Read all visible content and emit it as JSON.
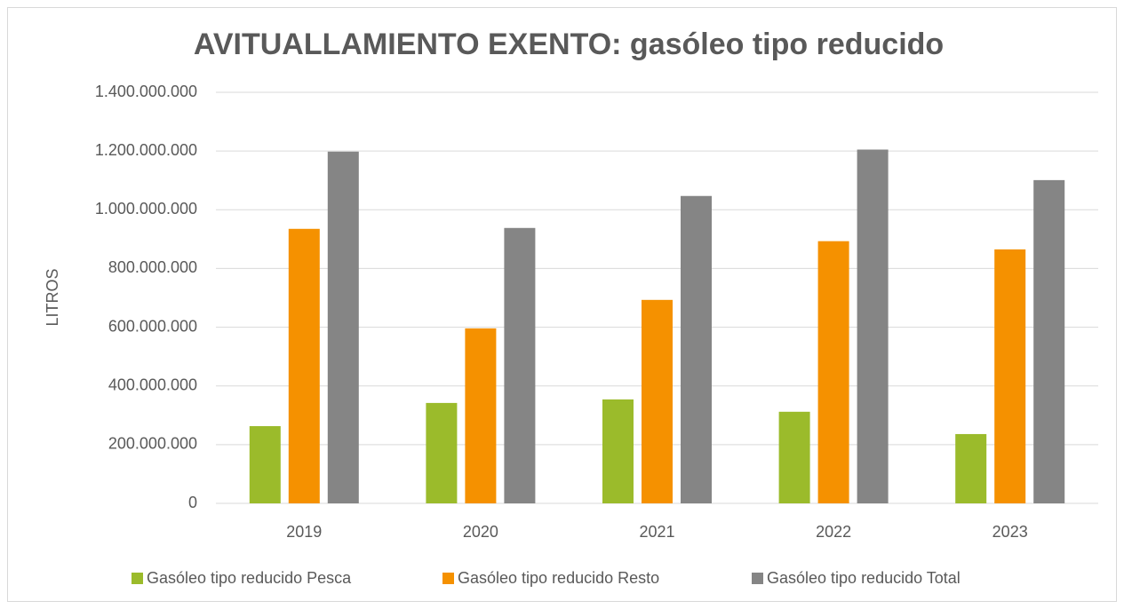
{
  "chart_data": {
    "type": "bar",
    "title": "AVITUALLAMIENTO EXENTO: gasóleo tipo reducido",
    "y_label": "LITROS",
    "categories": [
      "2019",
      "2020",
      "2021",
      "2022",
      "2023"
    ],
    "series": [
      {
        "name": "Gasóleo tipo reducido Pesca",
        "color": "#9bbb2b",
        "values": [
          263000000,
          342000000,
          354000000,
          312000000,
          236000000
        ]
      },
      {
        "name": "Gasóleo tipo reducido Resto",
        "color": "#f59100",
        "values": [
          935000000,
          596000000,
          693000000,
          893000000,
          865000000
        ]
      },
      {
        "name": "Gasóleo tipo reducido Total",
        "color": "#858585",
        "values": [
          1198000000,
          938000000,
          1047000000,
          1205000000,
          1101000000
        ]
      }
    ],
    "ylim": [
      0,
      1400000000
    ],
    "yticks": [
      0,
      {
        "value": 200000000,
        "label": "200.000.000"
      },
      {
        "value": 400000000,
        "label": "400.000.000"
      },
      {
        "value": 600000000,
        "label": "600.000.000"
      },
      {
        "value": 800000000,
        "label": "800.000.000"
      },
      {
        "value": 1000000000,
        "label": "1.000.000.000"
      },
      {
        "value": 1200000000,
        "label": "1.200.000.000"
      },
      {
        "value": 1400000000,
        "label": "1.400.000.000"
      }
    ],
    "grid": true,
    "legend": "bottom"
  }
}
